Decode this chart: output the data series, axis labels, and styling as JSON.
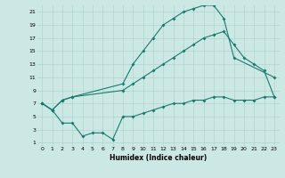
{
  "xlabel": "Humidex (Indice chaleur)",
  "ylabel": "",
  "bg_color": "#cce8e4",
  "line_color": "#1a7a6e",
  "grid_color": "#aed4cf",
  "xlim": [
    -0.5,
    23.5
  ],
  "ylim": [
    0.5,
    22
  ],
  "xticks": [
    0,
    1,
    2,
    3,
    4,
    5,
    6,
    7,
    8,
    9,
    10,
    11,
    12,
    13,
    14,
    15,
    16,
    17,
    18,
    19,
    20,
    21,
    22,
    23
  ],
  "yticks": [
    1,
    3,
    5,
    7,
    9,
    11,
    13,
    15,
    17,
    19,
    21
  ],
  "line1_x": [
    0,
    1,
    2,
    3,
    8,
    9,
    10,
    11,
    12,
    13,
    14,
    15,
    16,
    17,
    18,
    19,
    23
  ],
  "line1_y": [
    7,
    6,
    7.5,
    8,
    10,
    13,
    15,
    17,
    19,
    20,
    21,
    21.5,
    22,
    22,
    20,
    14,
    11
  ],
  "line2_x": [
    0,
    1,
    2,
    3,
    8,
    9,
    10,
    11,
    12,
    13,
    14,
    15,
    16,
    17,
    18,
    19,
    20,
    21,
    22,
    23
  ],
  "line2_y": [
    7,
    6,
    7.5,
    8,
    9,
    10,
    11,
    12,
    13,
    14,
    15,
    16,
    17,
    17.5,
    18,
    16,
    14,
    13,
    12,
    8
  ],
  "line3_x": [
    0,
    1,
    2,
    3,
    4,
    5,
    6,
    7,
    8,
    9,
    10,
    11,
    12,
    13,
    14,
    15,
    16,
    17,
    18,
    19,
    20,
    21,
    22,
    23
  ],
  "line3_y": [
    7,
    6,
    4,
    4,
    2,
    2.5,
    2.5,
    1.5,
    5,
    5,
    5.5,
    6,
    6.5,
    7,
    7,
    7.5,
    7.5,
    8,
    8,
    7.5,
    7.5,
    7.5,
    8,
    8
  ]
}
